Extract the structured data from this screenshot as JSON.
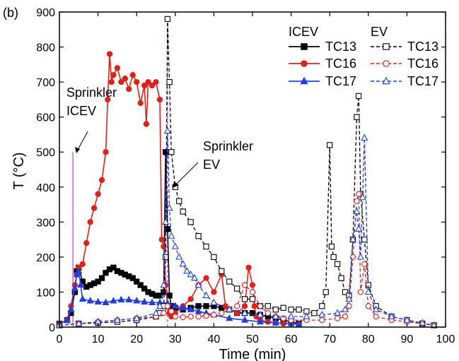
{
  "chart_data": {
    "type": "line",
    "panel_label": "(b)",
    "title": "",
    "xlabel": "Time (min)",
    "ylabel": "T (°C)",
    "xlim": [
      0,
      100
    ],
    "ylim": [
      0,
      900
    ],
    "xticks": [
      0,
      10,
      20,
      30,
      40,
      50,
      60,
      70,
      80,
      90,
      100
    ],
    "yticks": [
      0,
      100,
      200,
      300,
      400,
      500,
      600,
      700,
      800,
      900
    ],
    "legend": {
      "placement": "top-right",
      "group_titles": [
        "ICEV",
        "EV"
      ],
      "entries": [
        "TC13",
        "TC16",
        "TC17",
        "TC13",
        "TC16",
        "TC17"
      ]
    },
    "annotations": [
      {
        "text_lines": [
          "Sprinkler",
          "ICEV"
        ],
        "x": 3.5,
        "y": 500
      },
      {
        "text_lines": [
          "Sprinkler",
          "EV"
        ],
        "x": 28,
        "y": 430
      }
    ],
    "sprinkler_markers": [
      {
        "name": "Sprinkler ICEV",
        "x": 3.5,
        "y0": 0,
        "y1": 500,
        "color": "#e040e0"
      },
      {
        "name": "Sprinkler EV",
        "x": 28,
        "y0": 0,
        "y1": 880,
        "color": "#e040e0"
      }
    ],
    "series": [
      {
        "name": "TC13",
        "group": "ICEV",
        "color": "#000000",
        "marker": "square-filled",
        "dash": "solid",
        "x": [
          0,
          2,
          3,
          4,
          4.5,
          5,
          6,
          7,
          8,
          9,
          10,
          11,
          12,
          13,
          14,
          15,
          16,
          17,
          18,
          19,
          20,
          21,
          22,
          23,
          24,
          25,
          26,
          27,
          27.5,
          28,
          28.5,
          29,
          30,
          32,
          34,
          36,
          38,
          40,
          42,
          44,
          46,
          48,
          50,
          52,
          54,
          56,
          58,
          60,
          62
        ],
        "y": [
          10,
          20,
          40,
          100,
          160,
          170,
          130,
          115,
          120,
          125,
          130,
          140,
          155,
          165,
          170,
          160,
          155,
          150,
          145,
          140,
          130,
          120,
          110,
          100,
          95,
          90,
          90,
          100,
          500,
          280,
          90,
          60,
          55,
          50,
          55,
          60,
          60,
          60,
          55,
          50,
          40,
          40,
          40,
          35,
          30,
          25,
          20,
          15,
          10
        ]
      },
      {
        "name": "TC16",
        "group": "ICEV",
        "color": "#e0201b",
        "marker": "circle-filled",
        "dash": "solid",
        "x": [
          0,
          2,
          3,
          4,
          4.5,
          5,
          6,
          7,
          8,
          9,
          10,
          11,
          12,
          12.5,
          13,
          13.5,
          14,
          15,
          16,
          17,
          18,
          19,
          20,
          21,
          22,
          22.5,
          23,
          24,
          25,
          26,
          26.5,
          27,
          27.5,
          28,
          28.5,
          29,
          30,
          32,
          34,
          36,
          38,
          40,
          42,
          43,
          44,
          46,
          48,
          49,
          50,
          50.5,
          51,
          52,
          54,
          56,
          58,
          60,
          62
        ],
        "y": [
          10,
          20,
          60,
          120,
          150,
          170,
          180,
          240,
          300,
          340,
          380,
          420,
          500,
          650,
          780,
          700,
          720,
          740,
          700,
          710,
          680,
          720,
          700,
          640,
          690,
          580,
          700,
          690,
          700,
          650,
          250,
          230,
          120,
          60,
          40,
          30,
          40,
          60,
          80,
          120,
          140,
          100,
          150,
          60,
          50,
          40,
          60,
          170,
          120,
          60,
          30,
          20,
          15,
          12,
          10,
          10,
          8
        ]
      },
      {
        "name": "TC17",
        "group": "ICEV",
        "color": "#1f3fe0",
        "marker": "triangle-filled",
        "dash": "solid",
        "x": [
          0,
          2,
          3,
          4,
          4.5,
          5,
          5.5,
          6,
          8,
          10,
          12,
          14,
          16,
          18,
          20,
          22,
          24,
          26,
          28,
          30,
          32,
          34,
          36,
          38,
          40,
          44,
          48,
          52,
          56,
          60,
          62
        ],
        "y": [
          10,
          20,
          50,
          110,
          150,
          160,
          120,
          80,
          75,
          72,
          70,
          75,
          78,
          78,
          75,
          72,
          70,
          70,
          68,
          60,
          55,
          50,
          45,
          40,
          35,
          25,
          20,
          15,
          12,
          10,
          8
        ]
      },
      {
        "name": "TC13",
        "group": "EV",
        "color": "#000000",
        "marker": "square-open",
        "dash": "dashed",
        "x": [
          0,
          5,
          10,
          15,
          20,
          25,
          26,
          27,
          27.5,
          28,
          28.5,
          29,
          30,
          31,
          32,
          34,
          36,
          38,
          40,
          42,
          44,
          46,
          48,
          50,
          52,
          54,
          56,
          58,
          60,
          62,
          64,
          66,
          68,
          69,
          70,
          70.5,
          71,
          72,
          73,
          74,
          75,
          76,
          77,
          77.5,
          78,
          79,
          80,
          82,
          86,
          90,
          94,
          97
        ],
        "y": [
          5,
          10,
          12,
          15,
          20,
          30,
          40,
          60,
          200,
          880,
          700,
          500,
          400,
          360,
          330,
          300,
          260,
          230,
          200,
          160,
          130,
          110,
          80,
          80,
          60,
          60,
          50,
          55,
          50,
          50,
          45,
          40,
          60,
          100,
          520,
          230,
          200,
          180,
          140,
          100,
          90,
          250,
          600,
          660,
          380,
          250,
          120,
          60,
          30,
          20,
          10,
          5
        ]
      },
      {
        "name": "TC16",
        "group": "EV",
        "color": "#e0201b",
        "marker": "circle-open",
        "dash": "dashed",
        "x": [
          0,
          5,
          10,
          15,
          20,
          25,
          27,
          28,
          29,
          30,
          32,
          34,
          36,
          38,
          40,
          42,
          44,
          46,
          48,
          50,
          52,
          54,
          56,
          58,
          60,
          64,
          68,
          72,
          74,
          75,
          76,
          77,
          77.5,
          78,
          79,
          80,
          82,
          86,
          90,
          94,
          97
        ],
        "y": [
          5,
          10,
          15,
          20,
          25,
          30,
          40,
          60,
          45,
          30,
          28,
          30,
          30,
          32,
          35,
          40,
          50,
          60,
          120,
          100,
          60,
          40,
          30,
          25,
          20,
          20,
          20,
          25,
          30,
          60,
          200,
          360,
          380,
          100,
          180,
          60,
          30,
          20,
          15,
          10,
          5
        ]
      },
      {
        "name": "TC17",
        "group": "EV",
        "color": "#1f3fe0",
        "marker": "triangle-open",
        "dash": "dashed",
        "x": [
          0,
          5,
          10,
          15,
          20,
          25,
          26,
          27,
          27.5,
          28,
          28.5,
          29,
          30,
          31,
          32,
          33,
          34,
          35,
          36,
          38,
          40,
          44,
          48,
          52,
          56,
          60,
          64,
          68,
          72,
          74,
          75,
          76,
          77,
          77.5,
          78,
          78.5,
          79,
          80,
          82,
          86,
          90,
          94,
          97
        ],
        "y": [
          5,
          10,
          15,
          20,
          25,
          40,
          60,
          120,
          300,
          560,
          340,
          260,
          230,
          200,
          180,
          160,
          150,
          140,
          120,
          90,
          70,
          50,
          40,
          35,
          30,
          30,
          30,
          35,
          40,
          50,
          80,
          250,
          330,
          280,
          200,
          370,
          540,
          100,
          50,
          30,
          20,
          12,
          5
        ]
      }
    ]
  }
}
